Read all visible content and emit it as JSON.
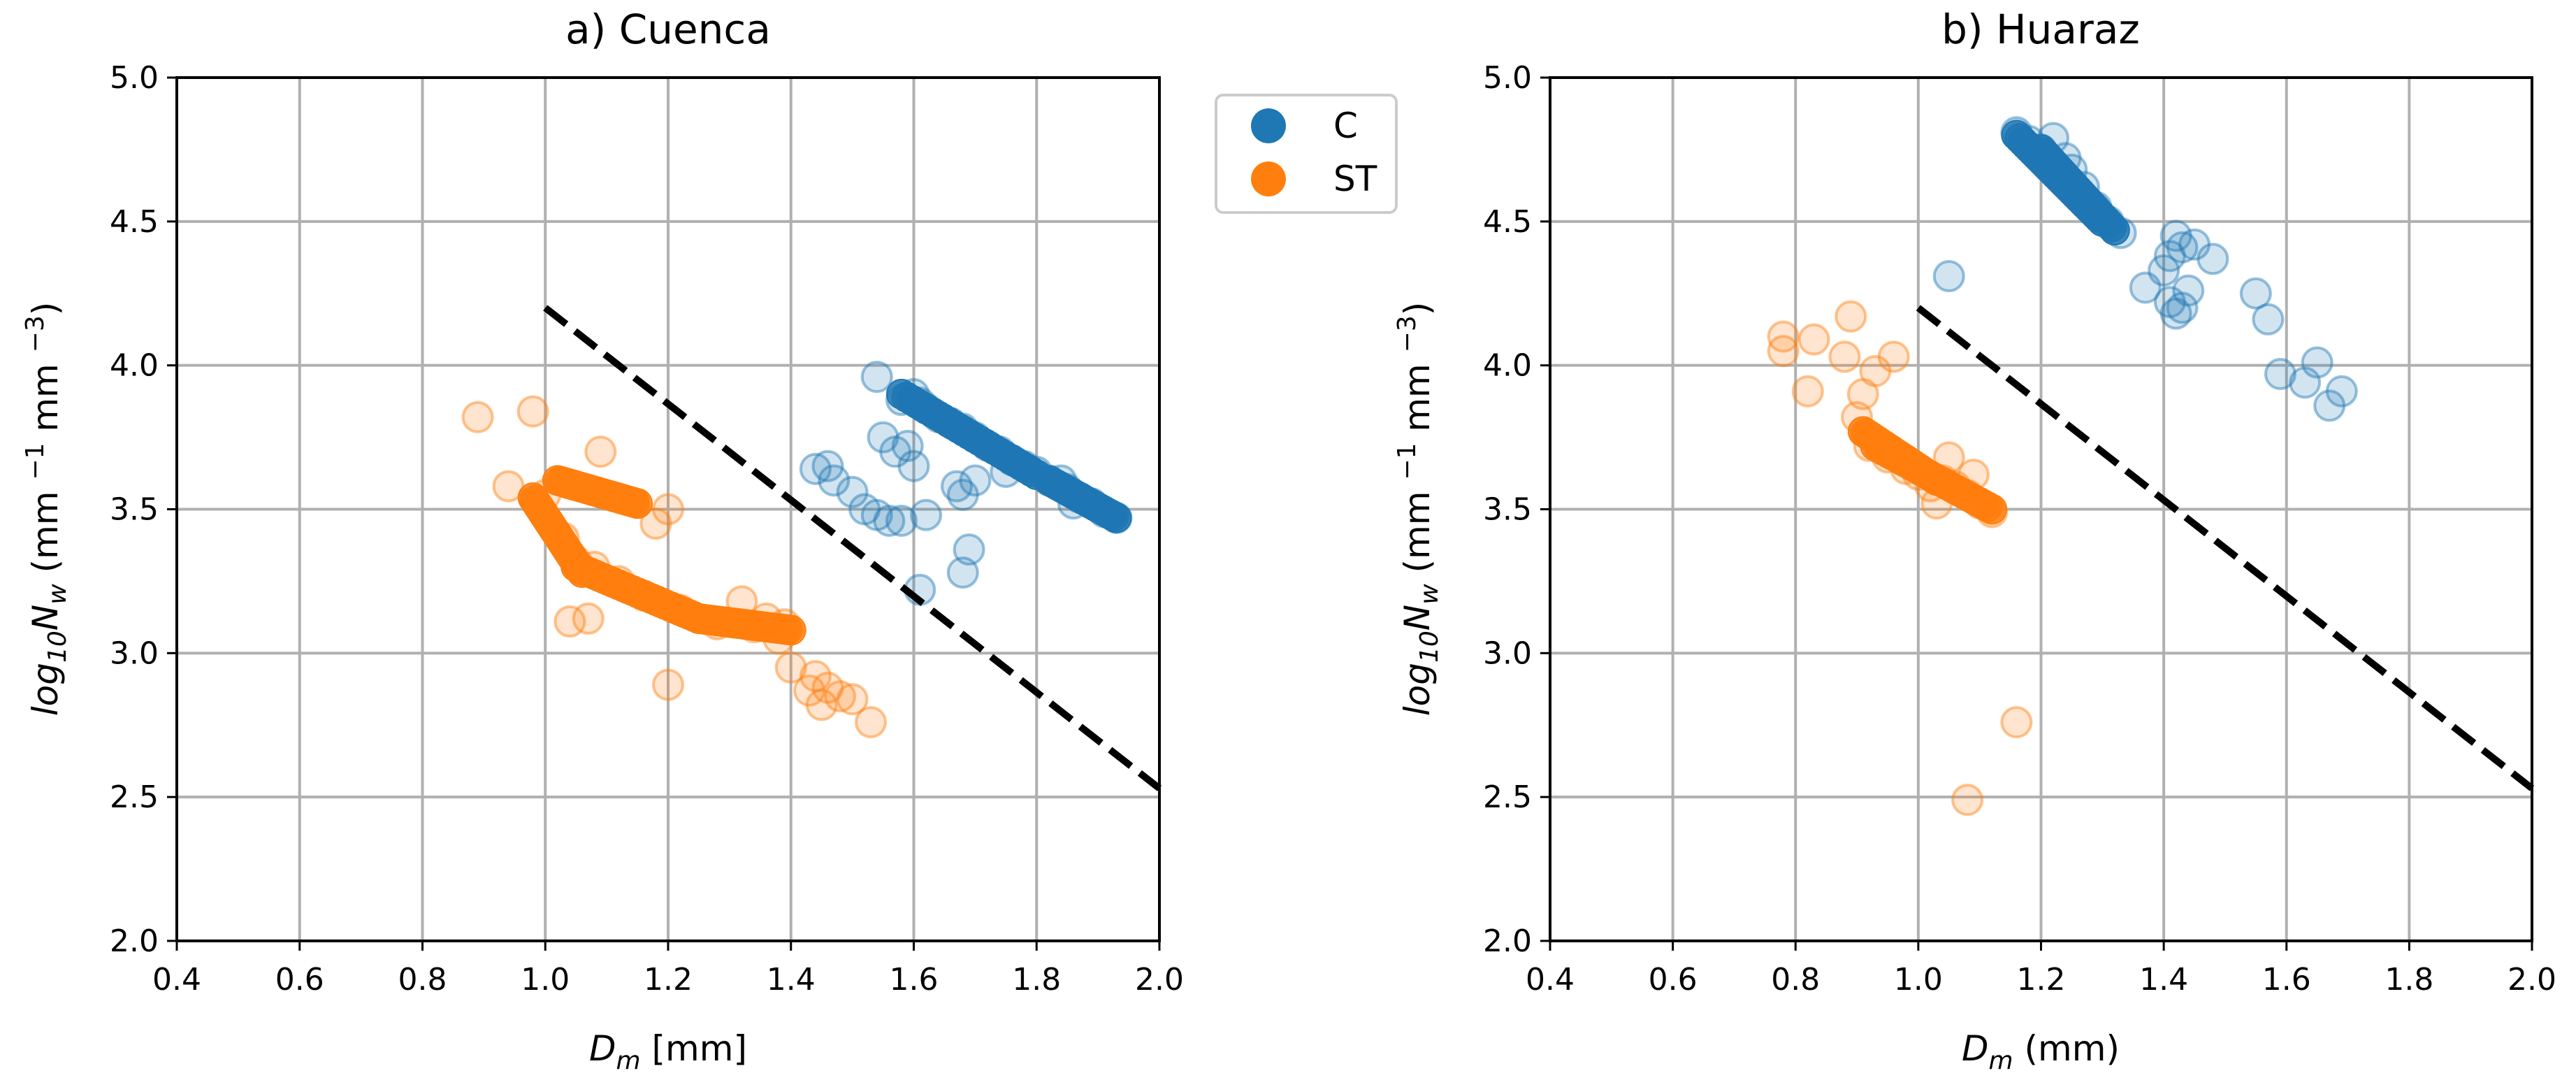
{
  "colors": {
    "C": "#1f77b4",
    "ST": "#ff7f0e",
    "grid": "#b0b0b0",
    "axis": "#000000",
    "threshold": "#000000"
  },
  "legend": {
    "placement": "between panels, top",
    "entries": [
      {
        "label": "C",
        "color": "#1f77b4"
      },
      {
        "label": "ST",
        "color": "#ff7f0e"
      }
    ]
  },
  "chart_data": [
    {
      "type": "scatter",
      "title": "a) Cuenca",
      "xlabel_main": "D",
      "xlabel_sub": "m",
      "xlabel_unit": " [mm]",
      "ylabel_prefix": "log",
      "ylabel_base": "10",
      "ylabel_var": "N",
      "ylabel_var_sub": "w",
      "ylabel_unit_open": " (mm ",
      "ylabel_exp1": "−1",
      "ylabel_mid": " mm ",
      "ylabel_exp2": "−3",
      "ylabel_close": ")",
      "xlim": [
        0.4,
        2.0
      ],
      "ylim": [
        2.0,
        5.0
      ],
      "xticks": [
        0.4,
        0.6,
        0.8,
        1.0,
        1.2,
        1.4,
        1.6,
        1.8,
        2.0
      ],
      "yticks": [
        2.0,
        2.5,
        3.0,
        3.5,
        4.0,
        4.5,
        5.0
      ],
      "xtick_labels": [
        "0.4",
        "0.6",
        "0.8",
        "1.0",
        "1.2",
        "1.4",
        "1.6",
        "1.8",
        "2.0"
      ],
      "ytick_labels": [
        "2.0",
        "2.5",
        "3.0",
        "3.5",
        "4.0",
        "4.5",
        "5.0"
      ],
      "grid": true,
      "threshold_line": {
        "x": [
          1.0,
          2.0
        ],
        "y": [
          4.2,
          2.53
        ],
        "style": "dashed"
      },
      "series": [
        {
          "name": "C",
          "color": "#1f77b4",
          "dense_segments": [
            {
              "from": [
                1.58,
                3.9
              ],
              "to": [
                1.8,
                3.62
              ]
            },
            {
              "from": [
                1.82,
                3.6
              ],
              "to": [
                1.93,
                3.47
              ]
            }
          ],
          "points": [
            [
              1.54,
              3.96
            ],
            [
              1.58,
              3.88
            ],
            [
              1.6,
              3.9
            ],
            [
              1.61,
              3.87
            ],
            [
              1.62,
              3.85
            ],
            [
              1.64,
              3.82
            ],
            [
              1.66,
              3.8
            ],
            [
              1.68,
              3.78
            ],
            [
              1.7,
              3.75
            ],
            [
              1.72,
              3.72
            ],
            [
              1.74,
              3.7
            ],
            [
              1.76,
              3.67
            ],
            [
              1.78,
              3.65
            ],
            [
              1.8,
              3.63
            ],
            [
              1.82,
              3.6
            ],
            [
              1.85,
              3.57
            ],
            [
              1.87,
              3.54
            ],
            [
              1.89,
              3.52
            ],
            [
              1.91,
              3.49
            ],
            [
              1.93,
              3.47
            ],
            [
              1.44,
              3.64
            ],
            [
              1.46,
              3.65
            ],
            [
              1.47,
              3.6
            ],
            [
              1.5,
              3.56
            ],
            [
              1.52,
              3.5
            ],
            [
              1.54,
              3.48
            ],
            [
              1.56,
              3.46
            ],
            [
              1.58,
              3.46
            ],
            [
              1.55,
              3.75
            ],
            [
              1.57,
              3.7
            ],
            [
              1.59,
              3.72
            ],
            [
              1.6,
              3.65
            ],
            [
              1.62,
              3.48
            ],
            [
              1.61,
              3.22
            ],
            [
              1.67,
              3.58
            ],
            [
              1.68,
              3.55
            ],
            [
              1.69,
              3.36
            ],
            [
              1.68,
              3.28
            ],
            [
              1.7,
              3.6
            ],
            [
              1.75,
              3.63
            ],
            [
              1.84,
              3.6
            ],
            [
              1.86,
              3.52
            ]
          ]
        },
        {
          "name": "ST",
          "color": "#ff7f0e",
          "dense_segments": [
            {
              "from": [
                0.98,
                3.54
              ],
              "to": [
                1.06,
                3.28
              ]
            },
            {
              "from": [
                1.02,
                3.6
              ],
              "to": [
                1.15,
                3.52
              ]
            },
            {
              "from": [
                1.05,
                3.3
              ],
              "to": [
                1.25,
                3.12
              ]
            },
            {
              "from": [
                1.25,
                3.12
              ],
              "to": [
                1.4,
                3.08
              ]
            }
          ],
          "points": [
            [
              0.89,
              3.82
            ],
            [
              0.98,
              3.84
            ],
            [
              0.94,
              3.58
            ],
            [
              1.09,
              3.7
            ],
            [
              1.18,
              3.45
            ],
            [
              1.2,
              3.5
            ],
            [
              1.04,
              3.11
            ],
            [
              1.07,
              3.12
            ],
            [
              1.2,
              2.89
            ],
            [
              1.32,
              3.18
            ],
            [
              1.36,
              3.12
            ],
            [
              1.38,
              3.05
            ],
            [
              1.4,
              2.95
            ],
            [
              1.43,
              2.87
            ],
            [
              1.45,
              2.82
            ],
            [
              1.48,
              2.85
            ],
            [
              1.5,
              2.84
            ],
            [
              1.53,
              2.76
            ],
            [
              1.44,
              2.92
            ],
            [
              1.46,
              2.88
            ],
            [
              1.0,
              3.55
            ],
            [
              1.03,
              3.4
            ],
            [
              1.05,
              3.32
            ],
            [
              1.08,
              3.3
            ],
            [
              1.12,
              3.25
            ],
            [
              1.16,
              3.2
            ],
            [
              1.22,
              3.15
            ],
            [
              1.28,
              3.1
            ],
            [
              1.34,
              3.09
            ],
            [
              1.39,
              3.1
            ]
          ]
        }
      ]
    },
    {
      "type": "scatter",
      "title": "b) Huaraz",
      "xlabel_main": "D",
      "xlabel_sub": "m",
      "xlabel_unit": " (mm)",
      "ylabel_prefix": "log",
      "ylabel_base": "10",
      "ylabel_var": "N",
      "ylabel_var_sub": "w",
      "ylabel_unit_open": " (mm ",
      "ylabel_exp1": "−1",
      "ylabel_mid": " mm ",
      "ylabel_exp2": "−3",
      "ylabel_close": ")",
      "xlim": [
        0.4,
        2.0
      ],
      "ylim": [
        2.0,
        5.0
      ],
      "xticks": [
        0.4,
        0.6,
        0.8,
        1.0,
        1.2,
        1.4,
        1.6,
        1.8,
        2.0
      ],
      "yticks": [
        2.0,
        2.5,
        3.0,
        3.5,
        4.0,
        4.5,
        5.0
      ],
      "xtick_labels": [
        "0.4",
        "0.6",
        "0.8",
        "1.0",
        "1.2",
        "1.4",
        "1.6",
        "1.8",
        "2.0"
      ],
      "ytick_labels": [
        "2.0",
        "2.5",
        "3.0",
        "3.5",
        "4.0",
        "4.5",
        "5.0"
      ],
      "grid": true,
      "threshold_line": {
        "x": [
          1.0,
          2.0
        ],
        "y": [
          4.2,
          2.53
        ],
        "style": "dashed"
      },
      "series": [
        {
          "name": "C",
          "color": "#1f77b4",
          "dense_segments": [
            {
              "from": [
                1.16,
                4.8
              ],
              "to": [
                1.3,
                4.5
              ]
            },
            {
              "from": [
                1.2,
                4.75
              ],
              "to": [
                1.32,
                4.47
              ]
            }
          ],
          "points": [
            [
              1.16,
              4.81
            ],
            [
              1.18,
              4.78
            ],
            [
              1.2,
              4.75
            ],
            [
              1.22,
              4.79
            ],
            [
              1.24,
              4.72
            ],
            [
              1.25,
              4.68
            ],
            [
              1.27,
              4.62
            ],
            [
              1.29,
              4.55
            ],
            [
              1.31,
              4.5
            ],
            [
              1.33,
              4.46
            ],
            [
              1.05,
              4.31
            ],
            [
              1.37,
              4.27
            ],
            [
              1.4,
              4.33
            ],
            [
              1.41,
              4.22
            ],
            [
              1.42,
              4.18
            ],
            [
              1.41,
              4.38
            ],
            [
              1.43,
              4.41
            ],
            [
              1.44,
              4.26
            ],
            [
              1.45,
              4.42
            ],
            [
              1.48,
              4.37
            ],
            [
              1.55,
              4.25
            ],
            [
              1.57,
              4.16
            ],
            [
              1.59,
              3.97
            ],
            [
              1.63,
              3.94
            ],
            [
              1.65,
              4.01
            ],
            [
              1.67,
              3.86
            ],
            [
              1.69,
              3.91
            ],
            [
              1.42,
              4.45
            ],
            [
              1.43,
              4.2
            ]
          ]
        },
        {
          "name": "ST",
          "color": "#ff7f0e",
          "dense_segments": [
            {
              "from": [
                0.91,
                3.77
              ],
              "to": [
                1.03,
                3.6
              ]
            },
            {
              "from": [
                0.93,
                3.72
              ],
              "to": [
                1.12,
                3.5
              ]
            }
          ],
          "points": [
            [
              0.78,
              4.1
            ],
            [
              0.78,
              4.05
            ],
            [
              0.82,
              3.91
            ],
            [
              0.83,
              4.09
            ],
            [
              0.88,
              4.03
            ],
            [
              0.89,
              4.17
            ],
            [
              0.91,
              3.9
            ],
            [
              0.93,
              3.98
            ],
            [
              0.96,
              4.03
            ],
            [
              0.9,
              3.82
            ],
            [
              0.92,
              3.72
            ],
            [
              0.95,
              3.68
            ],
            [
              0.98,
              3.64
            ],
            [
              1.0,
              3.62
            ],
            [
              1.02,
              3.58
            ],
            [
              1.04,
              3.6
            ],
            [
              1.06,
              3.58
            ],
            [
              1.08,
              3.55
            ],
            [
              1.1,
              3.52
            ],
            [
              1.12,
              3.49
            ],
            [
              1.03,
              3.52
            ],
            [
              1.05,
              3.68
            ],
            [
              1.09,
              3.62
            ],
            [
              1.16,
              2.76
            ],
            [
              1.08,
              2.49
            ]
          ]
        }
      ]
    }
  ]
}
